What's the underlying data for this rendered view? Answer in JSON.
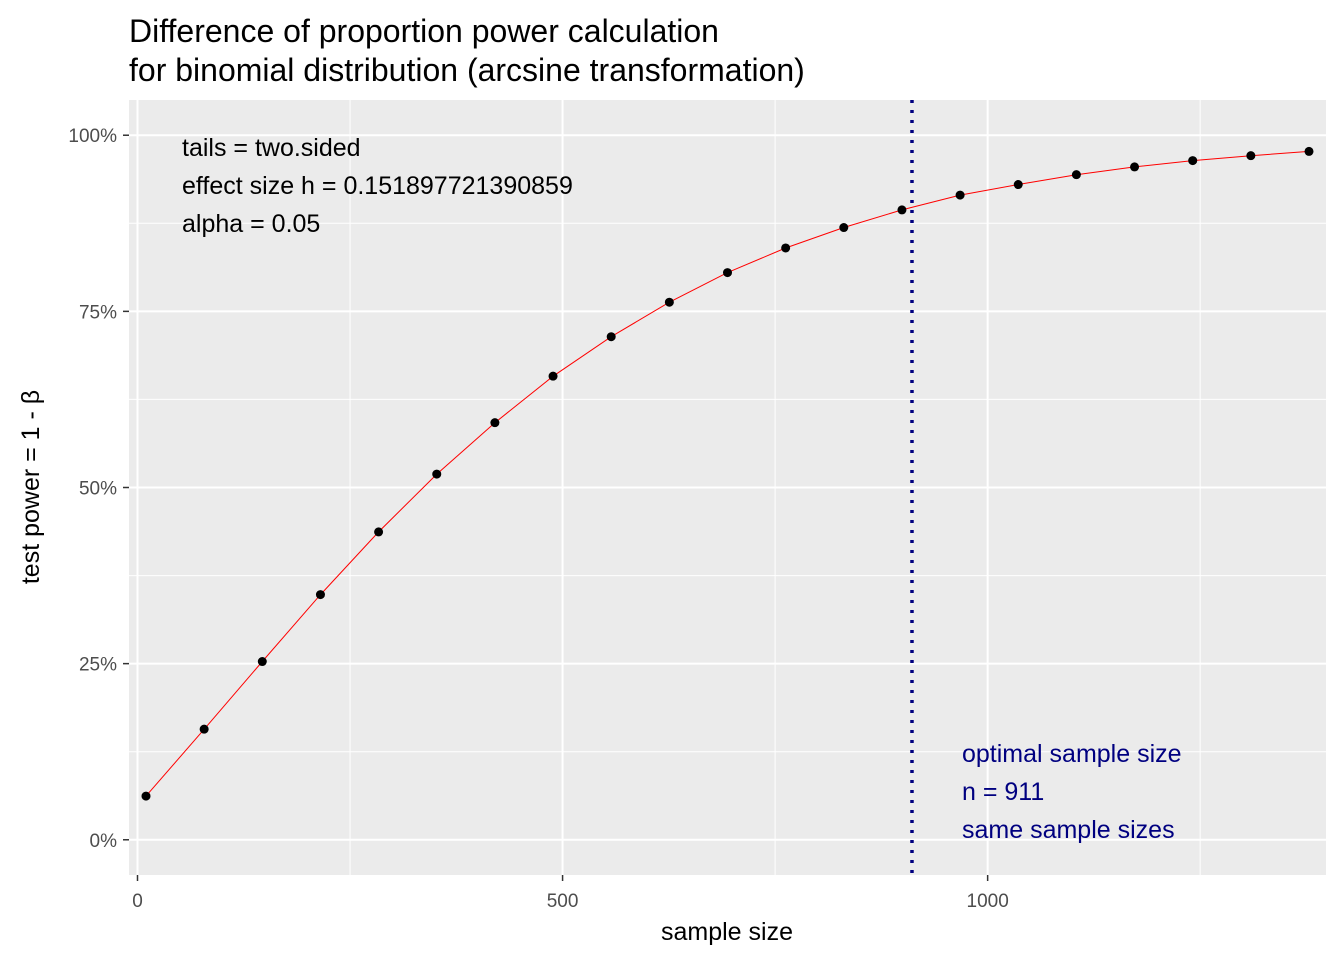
{
  "chart_data": {
    "type": "line",
    "title_lines": [
      "Difference of proportion power calculation",
      "for binomial distribution (arcsine transformation)"
    ],
    "xlabel": "sample size",
    "ylabel": "test power = 1 - β",
    "xlim": [
      -10,
      1398
    ],
    "ylim": [
      -0.05,
      1.05
    ],
    "x_ticks": [
      0,
      500,
      1000
    ],
    "x_tick_labels": [
      "0",
      "500",
      "1000"
    ],
    "x_minor_ticks": [
      250,
      750,
      1250
    ],
    "y_ticks": [
      0,
      0.25,
      0.5,
      0.75,
      1.0
    ],
    "y_tick_labels": [
      "0%",
      "25%",
      "50%",
      "75%",
      "100%"
    ],
    "grid": true,
    "series": [
      {
        "x": [
          10,
          78.4,
          146.8,
          215.2,
          283.6,
          352,
          420.4,
          488.8,
          557.2,
          625.6,
          694,
          762.4,
          830.8,
          899.2,
          967.6,
          1036,
          1104.4,
          1172.8,
          1241.2,
          1309.6,
          1378
        ],
        "values": [
          0.062,
          0.157,
          0.253,
          0.348,
          0.437,
          0.519,
          0.592,
          0.658,
          0.714,
          0.763,
          0.805,
          0.84,
          0.869,
          0.894,
          0.915,
          0.93,
          0.944,
          0.955,
          0.964,
          0.971,
          0.977
        ]
      }
    ],
    "line_color": "#ff0000",
    "point_color": "#000000",
    "vline": {
      "x": 911,
      "color": "#000080"
    },
    "annotations_left": [
      "tails = two.sided",
      "effect size h = 0.151897721390859",
      "alpha = 0.05"
    ],
    "annotations_right": [
      "optimal sample size",
      "n = 911",
      "same sample sizes"
    ],
    "annotation_right_color": "#000080",
    "panel_color": "#ebebeb"
  }
}
